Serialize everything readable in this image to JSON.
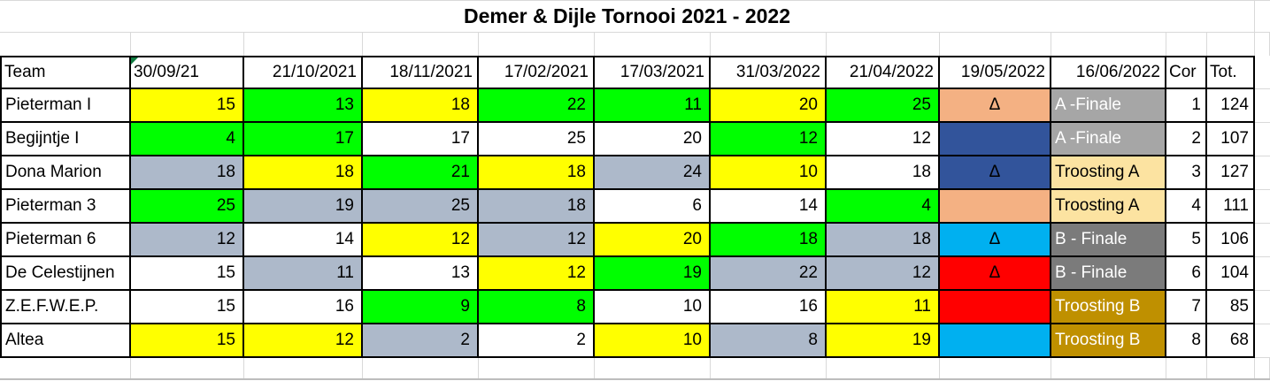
{
  "title": "Demer & Dijle Tornooi 2021 - 2022",
  "palette": {
    "yellow": "#FFFF00",
    "green": "#00FF00",
    "bluegray": "#ADB9CA",
    "white": "#FFFFFF",
    "salmon": "#F4B183",
    "darkblue": "#32549B",
    "cyan": "#00B0F0",
    "red": "#FF0000",
    "gray_a": "#A6A6A6",
    "tan": "#FCE3A1",
    "gray_b": "#7B7B7B",
    "gold": "#BF9000",
    "error_corner": "#107C41",
    "gridline": "#D9D9D9",
    "table_border": "#000000"
  },
  "markers": {
    "error_marker_column": "30/09/21"
  },
  "table": {
    "columns": [
      "Team",
      "30/09/21",
      "21/10/2021",
      "18/11/2021",
      "17/02/2021",
      "17/03/2021",
      "31/03/2022",
      "21/04/2022",
      "19/05/2022",
      "16/06/2022",
      "Cor",
      "Tot."
    ],
    "rows": [
      {
        "team": "Pieterman I",
        "scores": [
          {
            "v": "15",
            "bg": "yellow"
          },
          {
            "v": "13",
            "bg": "green"
          },
          {
            "v": "18",
            "bg": "yellow"
          },
          {
            "v": "22",
            "bg": "green"
          },
          {
            "v": "11",
            "bg": "green"
          },
          {
            "v": "20",
            "bg": "yellow"
          },
          {
            "v": "25",
            "bg": "green"
          }
        ],
        "delta": {
          "v": "Δ",
          "bg": "salmon"
        },
        "result": {
          "v": "A -Finale",
          "bg": "gray_a",
          "fg": "#FFFFFF"
        },
        "cor": "1",
        "tot": "124"
      },
      {
        "team": "Begijntje I",
        "scores": [
          {
            "v": "4",
            "bg": "green"
          },
          {
            "v": "17",
            "bg": "green"
          },
          {
            "v": "17",
            "bg": "white"
          },
          {
            "v": "25",
            "bg": "white"
          },
          {
            "v": "20",
            "bg": "white"
          },
          {
            "v": "12",
            "bg": "green"
          },
          {
            "v": "12",
            "bg": "white"
          }
        ],
        "delta": {
          "v": "",
          "bg": "darkblue"
        },
        "result": {
          "v": "A -Finale",
          "bg": "gray_a",
          "fg": "#FFFFFF"
        },
        "cor": "2",
        "tot": "107"
      },
      {
        "team": "Dona Marion",
        "scores": [
          {
            "v": "18",
            "bg": "bluegray"
          },
          {
            "v": "18",
            "bg": "yellow"
          },
          {
            "v": "21",
            "bg": "green"
          },
          {
            "v": "18",
            "bg": "yellow"
          },
          {
            "v": "24",
            "bg": "bluegray"
          },
          {
            "v": "10",
            "bg": "yellow"
          },
          {
            "v": "18",
            "bg": "white"
          }
        ],
        "delta": {
          "v": "Δ",
          "bg": "darkblue"
        },
        "result": {
          "v": "Troosting A",
          "bg": "tan",
          "fg": "#000000"
        },
        "cor": "3",
        "tot": "127"
      },
      {
        "team": "Pieterman 3",
        "scores": [
          {
            "v": "25",
            "bg": "green"
          },
          {
            "v": "19",
            "bg": "bluegray"
          },
          {
            "v": "25",
            "bg": "bluegray"
          },
          {
            "v": "18",
            "bg": "bluegray"
          },
          {
            "v": "6",
            "bg": "white"
          },
          {
            "v": "14",
            "bg": "white"
          },
          {
            "v": "4",
            "bg": "green"
          }
        ],
        "delta": {
          "v": "",
          "bg": "salmon"
        },
        "result": {
          "v": "Troosting A",
          "bg": "tan",
          "fg": "#000000"
        },
        "cor": "4",
        "tot": "111"
      },
      {
        "team": "Pieterman 6",
        "scores": [
          {
            "v": "12",
            "bg": "bluegray"
          },
          {
            "v": "14",
            "bg": "white"
          },
          {
            "v": "12",
            "bg": "yellow"
          },
          {
            "v": "12",
            "bg": "bluegray"
          },
          {
            "v": "20",
            "bg": "yellow"
          },
          {
            "v": "18",
            "bg": "green"
          },
          {
            "v": "18",
            "bg": "bluegray"
          }
        ],
        "delta": {
          "v": "Δ",
          "bg": "cyan"
        },
        "result": {
          "v": "B - Finale",
          "bg": "gray_b",
          "fg": "#FFFFFF"
        },
        "cor": "5",
        "tot": "106"
      },
      {
        "team": "De Celestijnen",
        "scores": [
          {
            "v": "15",
            "bg": "white"
          },
          {
            "v": "11",
            "bg": "bluegray"
          },
          {
            "v": "13",
            "bg": "white"
          },
          {
            "v": "12",
            "bg": "yellow"
          },
          {
            "v": "19",
            "bg": "green"
          },
          {
            "v": "22",
            "bg": "bluegray"
          },
          {
            "v": "12",
            "bg": "bluegray"
          }
        ],
        "delta": {
          "v": "Δ",
          "bg": "red"
        },
        "result": {
          "v": "B - Finale",
          "bg": "gray_b",
          "fg": "#FFFFFF"
        },
        "cor": "6",
        "tot": "104"
      },
      {
        "team": "Z.E.F.W.E.P.",
        "scores": [
          {
            "v": "15",
            "bg": "white"
          },
          {
            "v": "16",
            "bg": "white"
          },
          {
            "v": "9",
            "bg": "green"
          },
          {
            "v": "8",
            "bg": "green"
          },
          {
            "v": "10",
            "bg": "white"
          },
          {
            "v": "16",
            "bg": "white"
          },
          {
            "v": "11",
            "bg": "yellow"
          }
        ],
        "delta": {
          "v": "",
          "bg": "red"
        },
        "result": {
          "v": "Troosting B",
          "bg": "gold",
          "fg": "#FFFFFF"
        },
        "cor": "7",
        "tot": "85"
      },
      {
        "team": "Altea",
        "scores": [
          {
            "v": "15",
            "bg": "yellow"
          },
          {
            "v": "12",
            "bg": "yellow"
          },
          {
            "v": "2",
            "bg": "bluegray"
          },
          {
            "v": "2",
            "bg": "white"
          },
          {
            "v": "10",
            "bg": "yellow"
          },
          {
            "v": "8",
            "bg": "bluegray"
          },
          {
            "v": "19",
            "bg": "yellow"
          }
        ],
        "delta": {
          "v": "",
          "bg": "cyan"
        },
        "result": {
          "v": "Troosting B",
          "bg": "gold",
          "fg": "#FFFFFF"
        },
        "cor": "8",
        "tot": "68"
      }
    ]
  }
}
